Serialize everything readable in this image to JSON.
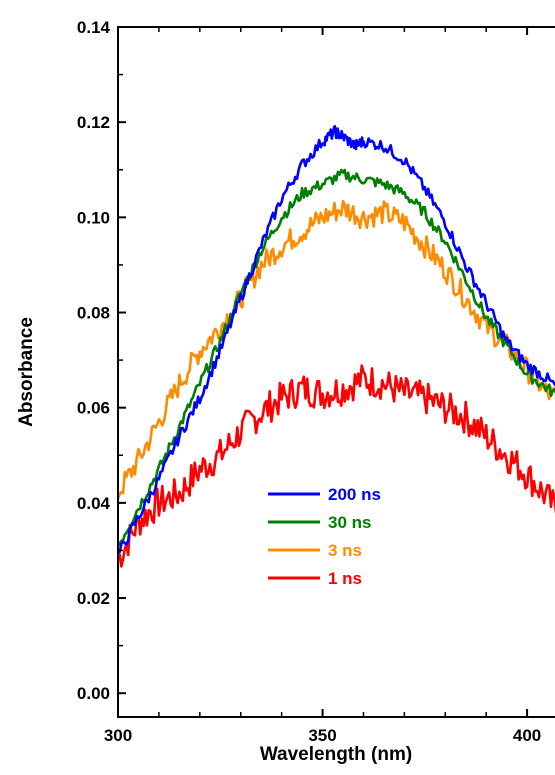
{
  "chart_data": {
    "type": "line",
    "xlabel": "Wavelength (nm)",
    "ylabel": "Absorbance",
    "xlim": [
      300,
      410
    ],
    "ylim": [
      -0.005,
      0.14
    ],
    "x_ticks": [
      "300",
      "350",
      "400"
    ],
    "y_ticks": [
      "0.00",
      "0.02",
      "0.04",
      "0.06",
      "0.08",
      "0.10",
      "0.12",
      "0.14"
    ],
    "legend_position": "center-left",
    "grid": false,
    "series": [
      {
        "name": "200 ns",
        "color": "#0000ff",
        "x": [
          300,
          305,
          310,
          315,
          320,
          325,
          330,
          335,
          340,
          345,
          350,
          353,
          355,
          358,
          360,
          365,
          370,
          375,
          380,
          385,
          390,
          395,
          400,
          405,
          410
        ],
        "y": [
          0.029,
          0.037,
          0.045,
          0.054,
          0.062,
          0.072,
          0.083,
          0.094,
          0.104,
          0.111,
          0.116,
          0.118,
          0.117,
          0.115,
          0.116,
          0.115,
          0.112,
          0.106,
          0.099,
          0.09,
          0.082,
          0.074,
          0.069,
          0.066,
          0.062
        ]
      },
      {
        "name": "30 ns",
        "color": "#008000",
        "x": [
          300,
          305,
          310,
          315,
          320,
          325,
          330,
          335,
          340,
          345,
          350,
          355,
          360,
          365,
          370,
          375,
          380,
          385,
          390,
          395,
          400,
          405,
          410
        ],
        "y": [
          0.031,
          0.039,
          0.047,
          0.056,
          0.065,
          0.074,
          0.084,
          0.093,
          0.1,
          0.105,
          0.107,
          0.109,
          0.108,
          0.107,
          0.105,
          0.101,
          0.095,
          0.087,
          0.079,
          0.073,
          0.067,
          0.064,
          0.061
        ]
      },
      {
        "name": "3 ns",
        "color": "#ff8c00",
        "x": [
          300,
          305,
          310,
          315,
          320,
          325,
          330,
          335,
          340,
          345,
          350,
          355,
          360,
          365,
          370,
          375,
          380,
          385,
          390,
          395,
          400,
          405,
          410
        ],
        "y": [
          0.042,
          0.049,
          0.057,
          0.065,
          0.072,
          0.077,
          0.083,
          0.09,
          0.094,
          0.097,
          0.1,
          0.102,
          0.1,
          0.101,
          0.099,
          0.094,
          0.089,
          0.083,
          0.077,
          0.073,
          0.068,
          0.063,
          0.061
        ]
      },
      {
        "name": "1 ns",
        "color": "#ff0000",
        "x": [
          300,
          305,
          310,
          315,
          320,
          325,
          330,
          335,
          340,
          345,
          350,
          355,
          360,
          365,
          370,
          375,
          380,
          385,
          390,
          395,
          400,
          405,
          410
        ],
        "y": [
          0.028,
          0.036,
          0.04,
          0.042,
          0.047,
          0.05,
          0.055,
          0.059,
          0.062,
          0.064,
          0.063,
          0.064,
          0.066,
          0.065,
          0.063,
          0.062,
          0.06,
          0.058,
          0.054,
          0.05,
          0.046,
          0.041,
          0.035
        ]
      }
    ]
  }
}
